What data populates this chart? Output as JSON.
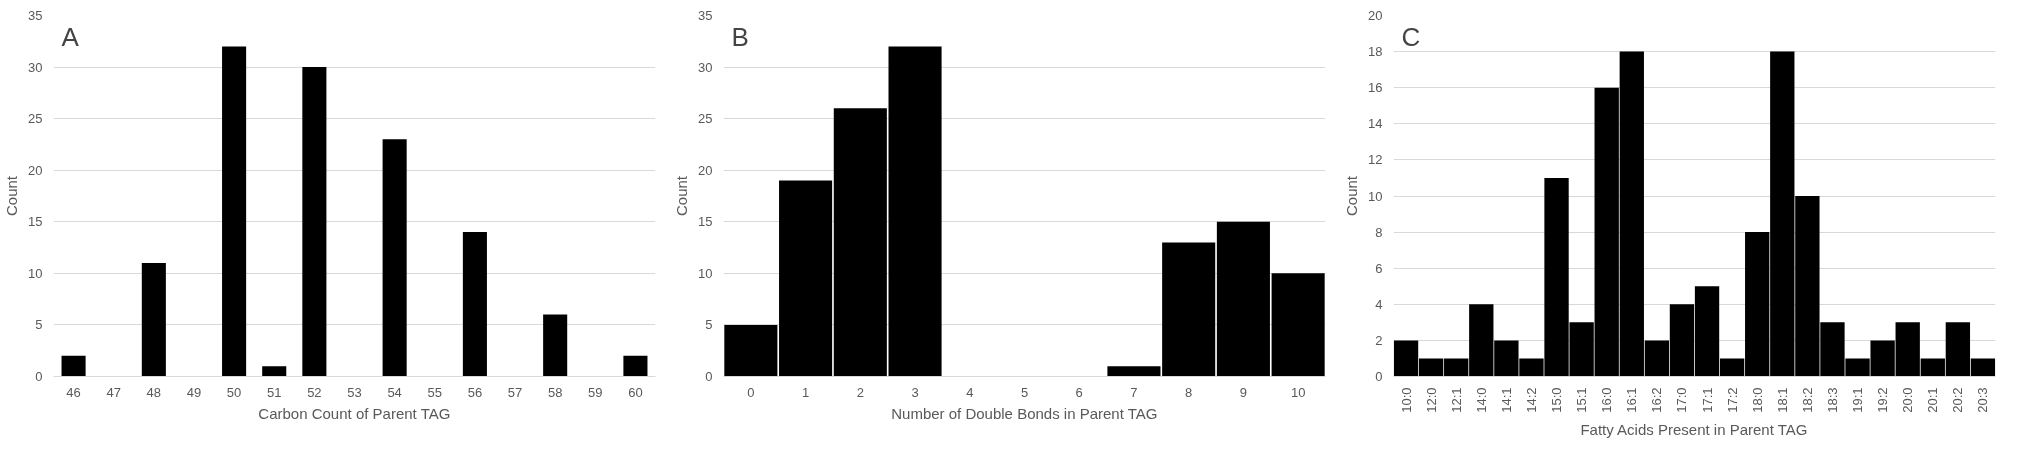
{
  "chart_data": [
    {
      "type": "bar",
      "annotations": [
        "A"
      ],
      "xlabel": "Carbon Count of Parent TAG",
      "ylabel": "Count",
      "categories": [
        "46",
        "47",
        "48",
        "49",
        "50",
        "51",
        "52",
        "53",
        "54",
        "55",
        "56",
        "57",
        "58",
        "59",
        "60"
      ],
      "values": [
        2,
        0,
        11,
        0,
        32,
        1,
        30,
        0,
        23,
        0,
        14,
        0,
        6,
        0,
        2
      ],
      "color": "#000000",
      "ylim": [
        0,
        35
      ],
      "yticks": [
        0,
        5,
        10,
        15,
        20,
        25,
        30,
        35
      ],
      "grid": "y"
    },
    {
      "type": "bar",
      "annotations": [
        "B"
      ],
      "xlabel": "Number of Double Bonds in Parent TAG",
      "ylabel": "Count",
      "categories": [
        "0",
        "1",
        "2",
        "3",
        "4",
        "5",
        "6",
        "7",
        "8",
        "9",
        "10"
      ],
      "values": [
        5,
        19,
        26,
        32,
        0,
        0,
        0,
        1,
        13,
        15,
        10
      ],
      "color": "#000000",
      "ylim": [
        0,
        35
      ],
      "yticks": [
        0,
        5,
        10,
        15,
        20,
        25,
        30,
        35
      ],
      "grid": "y"
    },
    {
      "type": "bar",
      "annotations": [
        "C"
      ],
      "xlabel": "Fatty Acids Present in Parent TAG",
      "ylabel": "Count",
      "categories": [
        "10:0",
        "12:0",
        "12:1",
        "14:0",
        "14:1",
        "14:2",
        "15:0",
        "15:1",
        "16:0",
        "16:1",
        "16:2",
        "17:0",
        "17:1",
        "17:2",
        "18:0",
        "18:1",
        "18:2",
        "18:3",
        "19:1",
        "19:2",
        "20:0",
        "20:1",
        "20:2",
        "20:3"
      ],
      "values": [
        2,
        1,
        1,
        4,
        2,
        1,
        11,
        3,
        16,
        18,
        2,
        4,
        5,
        1,
        8,
        18,
        10,
        3,
        1,
        2,
        3,
        1,
        3,
        1
      ],
      "color": "#000000",
      "ylim": [
        0,
        20
      ],
      "yticks": [
        0,
        2,
        4,
        6,
        8,
        10,
        12,
        14,
        16,
        18,
        20
      ],
      "grid": "y"
    }
  ]
}
